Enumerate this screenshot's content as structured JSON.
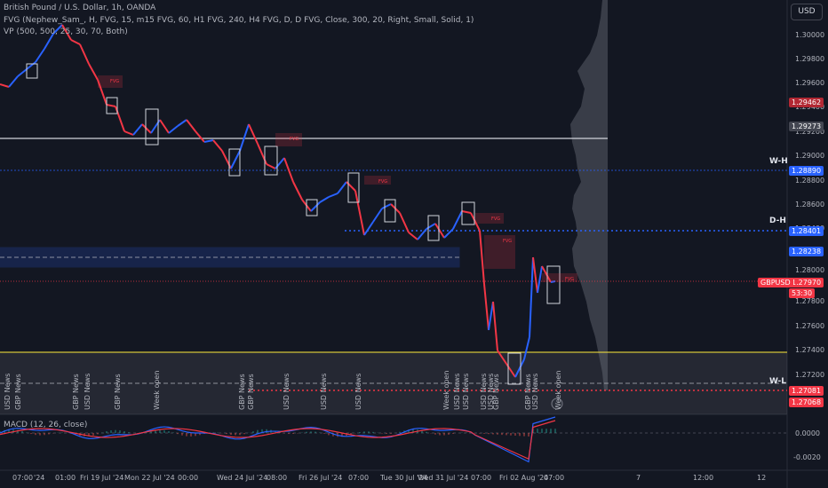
{
  "header": {
    "symbol_line": "British Pound / U.S. Dollar, 1h, OANDA",
    "fvg_line": "FVG (Nephew_Sam_, H, FVG, 15, m15 FVG, 60, H1 FVG, 240, H4 FVG, D, D FVG, Close, 300, 20, Right, Small, Solid, 1)",
    "vp_line": "VP (500, 500, 25, 30, 70, Both)"
  },
  "currency_button": "USD",
  "price_axis": [
    "1.30000",
    "1.29800",
    "1.29600",
    "1.29400",
    "1.29200",
    "1.29000",
    "1.28800",
    "1.28600",
    "1.28400",
    "1.28000",
    "1.27800",
    "1.27600",
    "1.27400",
    "1.27200"
  ],
  "price_tags": [
    {
      "label": "1.29462",
      "color": "#b22833"
    },
    {
      "label": "1.29273",
      "color": "#434651"
    },
    {
      "label": "1.28890",
      "color": "#2962ff"
    },
    {
      "label": "1.28401",
      "color": "#2962ff"
    },
    {
      "label": "1.28238",
      "color": "#2962ff"
    },
    {
      "label": "1.27970",
      "color": "#f23645"
    },
    {
      "label": "53:30",
      "color": "#f23645"
    },
    {
      "label": "1.27081",
      "color": "#f23645"
    },
    {
      "label": "1.27068",
      "color": "#f23645"
    }
  ],
  "symbol_tag": "GBPUSD",
  "level_labels": [
    "W-H",
    "D-H",
    "W-L"
  ],
  "fvg_label": "FVG",
  "news_labels": [
    "USD News",
    "GBP News",
    "GBP News",
    "USD News",
    "GBP News",
    "Week open",
    "GBP News",
    "GBP News",
    "USD News",
    "USD News",
    "USD News",
    "Week open",
    "USD News",
    "USD News",
    "USD News",
    "USD News",
    "GBP News",
    "GBP News",
    "USD News",
    "Week open"
  ],
  "macd": {
    "label": "MACD (12, 26, close)",
    "axis": [
      "0.0000",
      "-0.0020"
    ]
  },
  "time_axis": [
    "07:00",
    "'24",
    "01:00",
    "Fri 19 Jul '24",
    "Mon 22 Jul '24",
    "00:00",
    "Wed 24 Jul '24",
    "08:00",
    "Fri 26 Jul '24",
    "07:00",
    "Tue 30 Jul '24",
    "Wed 31 Jul '24",
    "07:00",
    "Fri 02 Aug '24",
    "07:00",
    "7",
    "12:00",
    "12"
  ],
  "colors": {
    "up": "#2962ff",
    "down": "#f23645",
    "bg": "#131722"
  }
}
